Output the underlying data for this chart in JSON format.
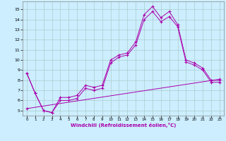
{
  "background_color": "#cceeff",
  "grid_color": "#aacccc",
  "line_color": "#aa00aa",
  "xlim": [
    -0.5,
    23.5
  ],
  "ylim": [
    4.5,
    15.8
  ],
  "xticks": [
    0,
    1,
    2,
    3,
    4,
    5,
    6,
    7,
    8,
    9,
    10,
    11,
    12,
    13,
    14,
    15,
    16,
    17,
    18,
    19,
    20,
    21,
    22,
    23
  ],
  "yticks": [
    5,
    6,
    7,
    8,
    9,
    10,
    11,
    12,
    13,
    14,
    15
  ],
  "xlabel": "Windchill (Refroidissement éolien,°C)",
  "line1_x": [
    0,
    1,
    2,
    3,
    4,
    5,
    6,
    7,
    8,
    9,
    10,
    11,
    12,
    13,
    14,
    15,
    16,
    17,
    18,
    19,
    20,
    21,
    22,
    23
  ],
  "line1_y": [
    8.7,
    6.7,
    5.0,
    4.8,
    6.3,
    6.3,
    6.5,
    7.5,
    7.3,
    7.5,
    10.0,
    10.5,
    10.7,
    11.8,
    14.5,
    15.3,
    14.2,
    14.8,
    13.5,
    10.0,
    9.7,
    9.2,
    8.0,
    8.0
  ],
  "line2_x": [
    0,
    1,
    2,
    3,
    4,
    5,
    6,
    7,
    8,
    9,
    10,
    11,
    12,
    13,
    14,
    15,
    16,
    17,
    18,
    19,
    20,
    21,
    22,
    23
  ],
  "line2_y": [
    8.7,
    6.7,
    5.0,
    4.8,
    6.0,
    6.0,
    6.2,
    7.2,
    7.0,
    7.2,
    9.7,
    10.3,
    10.5,
    11.5,
    14.0,
    14.8,
    13.8,
    14.3,
    13.3,
    9.8,
    9.5,
    9.0,
    7.8,
    7.8
  ],
  "line3_x": [
    0,
    23
  ],
  "line3_y": [
    5.2,
    8.1
  ]
}
